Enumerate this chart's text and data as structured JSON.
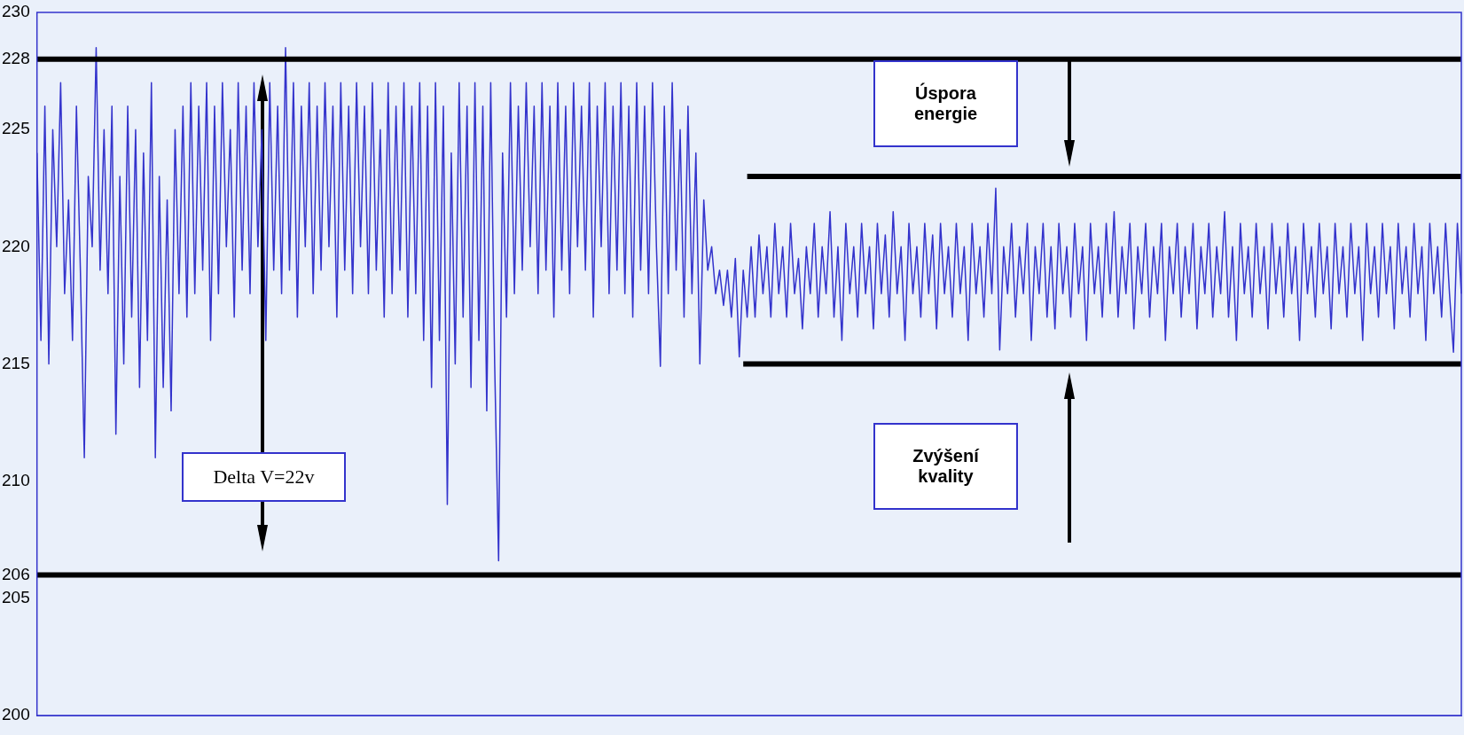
{
  "chart_data": {
    "type": "line",
    "categories": [
      null,
      null,
      null,
      null,
      null,
      null,
      null,
      null,
      null,
      null,
      null,
      null,
      null,
      null,
      null,
      null,
      null,
      null,
      null,
      null,
      null,
      null,
      null,
      null,
      null,
      null,
      null,
      null,
      null,
      null,
      null,
      null,
      null,
      null,
      null,
      null,
      null,
      null,
      null,
      null,
      null,
      null,
      null,
      null,
      null,
      null,
      null,
      null,
      null,
      null,
      null,
      null,
      null,
      null,
      null,
      null,
      null,
      null,
      null,
      null,
      null,
      null,
      null,
      null,
      null,
      null,
      null,
      null,
      null,
      null,
      null,
      null,
      null,
      null,
      null,
      null,
      null,
      null,
      null,
      null,
      null,
      null,
      null,
      null,
      null,
      null,
      null,
      null,
      null,
      null,
      null,
      null,
      null,
      null,
      null,
      null,
      null,
      null,
      null,
      null,
      null,
      null,
      null,
      null,
      null,
      null,
      null,
      null,
      null,
      null,
      null,
      null,
      null,
      null,
      null,
      null,
      null,
      null,
      null,
      null,
      null,
      null,
      null,
      null,
      null,
      null,
      null,
      null,
      null,
      null,
      null,
      null,
      null,
      null,
      null,
      null,
      null,
      null,
      null,
      null,
      null,
      null,
      null,
      null,
      null,
      null,
      null,
      null,
      null,
      null,
      null,
      null,
      null,
      null,
      null,
      null,
      null,
      null,
      null,
      null,
      null,
      null,
      null,
      null,
      null,
      null,
      null,
      null,
      null,
      null,
      null,
      null,
      null,
      null,
      null,
      null,
      null,
      null,
      null,
      null,
      null,
      null,
      null,
      null,
      null,
      null,
      null,
      null,
      null,
      null,
      null,
      null,
      null,
      null,
      null,
      null,
      null,
      null,
      null,
      null,
      null,
      null,
      null,
      null,
      null,
      null,
      null,
      null,
      null,
      null,
      null,
      null,
      null,
      null,
      null,
      null,
      null,
      null,
      null,
      null,
      null,
      null,
      null,
      null,
      null,
      null,
      null,
      null,
      null,
      null,
      null,
      null,
      null,
      null,
      null,
      null,
      null,
      null,
      null,
      null,
      null,
      null,
      null,
      null,
      null,
      null,
      null,
      null,
      null,
      null,
      null,
      null,
      null,
      null,
      null,
      null,
      null,
      null,
      null,
      null,
      null,
      null,
      null,
      null,
      null,
      null,
      null,
      null,
      null,
      null,
      null,
      null,
      null,
      null,
      null,
      null,
      null,
      null,
      null,
      null,
      null,
      null,
      null,
      null,
      null,
      null,
      null,
      null,
      null,
      null,
      null,
      null,
      null,
      null,
      null,
      null,
      null,
      null,
      null,
      null,
      null,
      null,
      null,
      null,
      null,
      null,
      null,
      null,
      null,
      null,
      null,
      null,
      null,
      null,
      null,
      null,
      null,
      null,
      null,
      null,
      null,
      null,
      null,
      null,
      null,
      null,
      null,
      null,
      null,
      null,
      null,
      null,
      null,
      null,
      null,
      null,
      null,
      null,
      null,
      null,
      null,
      null,
      null,
      null,
      null,
      null,
      null,
      null,
      null,
      null,
      null,
      null,
      null,
      null,
      null,
      null,
      null,
      null,
      null,
      null,
      null,
      null
    ],
    "ylim": [
      200,
      230
    ],
    "yticks": [
      200,
      205,
      206,
      210,
      215,
      220,
      225,
      228,
      230
    ],
    "tick_labels": "y",
    "grid": false,
    "legend": false,
    "marker": "none",
    "line_style": "solid",
    "series": [
      {
        "color": "#3333cc",
        "values": [
          224,
          216,
          226,
          215,
          225,
          220,
          227,
          218,
          222,
          216,
          226,
          219,
          211,
          223,
          220,
          228.5,
          219,
          225,
          218,
          226,
          212,
          223,
          215,
          226,
          217,
          225,
          214,
          224,
          216,
          227,
          211,
          223,
          214,
          222,
          213,
          225,
          218,
          226,
          217,
          227,
          218,
          226,
          219,
          227,
          216,
          226,
          218,
          227,
          220,
          225,
          217,
          227,
          219,
          226,
          218,
          227,
          220,
          225,
          216,
          227,
          219,
          226,
          218,
          228.5,
          219,
          227,
          217,
          226,
          220,
          227,
          218,
          226,
          219,
          227,
          220,
          226,
          217,
          227,
          219,
          226,
          218,
          227,
          220,
          226,
          218,
          227,
          219,
          225,
          217,
          227,
          218,
          226,
          219,
          227,
          217,
          226,
          218,
          227,
          216,
          226,
          214,
          227,
          216,
          226,
          209,
          224,
          215,
          227,
          217,
          226,
          214,
          227,
          216,
          226,
          213,
          227,
          215,
          206.6,
          224,
          217,
          227,
          218,
          226,
          219,
          227,
          220,
          226,
          218,
          227,
          219,
          226,
          217,
          227,
          219,
          226,
          218,
          227,
          220,
          226,
          219,
          227,
          217,
          226,
          220,
          227,
          218,
          226,
          219,
          227,
          218,
          226,
          217,
          227,
          219,
          226,
          218,
          227,
          220,
          214.9,
          226,
          218,
          227,
          219,
          225,
          217,
          226,
          218,
          224,
          215,
          222,
          219,
          220,
          218,
          219,
          217.5,
          219,
          217,
          219.5,
          215.3,
          219,
          217,
          220,
          217,
          220.5,
          218,
          220,
          217,
          221,
          218,
          220,
          217,
          221,
          218,
          219.5,
          216.5,
          220,
          218,
          221,
          217,
          220,
          218,
          221.5,
          217,
          220,
          216,
          221,
          218,
          220,
          217,
          221,
          218,
          220,
          216.5,
          221,
          218,
          220.5,
          217,
          221.5,
          218,
          220,
          216,
          221,
          218,
          220,
          217,
          221,
          218,
          220.5,
          216.5,
          221,
          218,
          220,
          217,
          221,
          218,
          220,
          216,
          221,
          218,
          220,
          217,
          221,
          218,
          222.5,
          215.6,
          220,
          218,
          221,
          217,
          220,
          218,
          221,
          216,
          220,
          218,
          221,
          217,
          220,
          216.5,
          221,
          218,
          220,
          217,
          221,
          218,
          220,
          216,
          221,
          218,
          220,
          217,
          221,
          218,
          221.5,
          217,
          220,
          218,
          221,
          216.5,
          220,
          218,
          221,
          217,
          220,
          218,
          221,
          216,
          220,
          218,
          221,
          217,
          220,
          218,
          221,
          216.5,
          220,
          218,
          221,
          217,
          220,
          218,
          221.5,
          217,
          220,
          216,
          221,
          218,
          220,
          217,
          221,
          218,
          220,
          216.5,
          221,
          218,
          220,
          217,
          221,
          218,
          220,
          216,
          221,
          218,
          220,
          217,
          221,
          218,
          220,
          216.5,
          221,
          218,
          220,
          217,
          221,
          218,
          220,
          216,
          221,
          218,
          220,
          217,
          221,
          218,
          220,
          216.5,
          221,
          218,
          220,
          217,
          221,
          218,
          220,
          216,
          221,
          218,
          220,
          217,
          221,
          218,
          215.5,
          221,
          218
        ]
      },
      {
        "color": "#000000",
        "values": [
          null,
          null,
          null,
          null,
          null,
          null,
          null,
          null,
          null,
          null,
          null,
          null,
          null,
          null,
          null,
          null,
          null,
          null,
          null,
          null,
          null,
          null,
          null,
          null,
          null,
          null,
          null,
          null,
          null,
          null,
          null,
          null,
          null,
          null,
          null,
          null,
          null,
          null,
          null,
          null,
          null,
          null,
          null,
          null,
          null,
          null,
          null,
          null,
          null,
          null,
          null,
          null,
          null,
          null,
          null,
          null,
          null,
          null,
          null,
          null,
          null,
          null,
          null,
          null,
          null,
          null,
          null,
          null,
          null,
          null,
          null,
          null,
          null,
          null,
          null,
          null,
          null,
          null,
          null,
          null,
          null,
          null,
          null,
          null,
          null,
          null,
          null,
          null,
          null,
          null,
          null,
          null,
          null,
          null,
          null,
          null,
          null,
          null,
          null,
          null,
          null,
          null,
          null,
          null,
          null,
          null,
          null,
          null,
          null,
          null,
          null,
          null,
          null,
          null,
          null,
          null,
          null,
          null,
          null,
          null,
          null,
          null,
          null,
          null,
          null,
          null,
          null,
          null,
          null,
          null,
          null,
          null,
          null,
          null,
          null,
          null,
          null,
          null,
          null,
          null,
          null,
          null,
          null,
          null,
          null,
          null,
          null,
          null,
          null,
          null,
          null,
          null,
          null,
          null,
          null,
          null,
          null,
          null,
          null,
          null,
          null,
          null,
          null,
          null,
          null,
          null,
          null,
          null,
          null,
          null,
          null,
          null,
          null,
          null,
          null,
          null,
          null,
          null,
          null,
          null,
          223,
          223,
          223,
          223,
          223,
          223,
          223,
          223,
          223,
          223,
          223,
          223,
          223,
          223,
          223,
          223,
          223,
          223,
          223,
          223,
          223,
          223,
          223,
          223,
          223,
          223,
          223,
          223,
          223,
          223,
          223,
          223,
          223,
          223,
          223,
          223,
          223,
          223,
          223,
          223,
          223,
          223,
          223,
          223,
          223,
          223,
          223,
          223,
          223,
          223,
          223,
          223,
          223,
          223,
          223,
          223,
          223,
          223,
          223,
          223,
          223,
          223,
          223,
          223,
          223,
          223,
          223,
          223,
          223,
          223,
          223,
          223,
          223,
          223,
          223,
          223,
          223,
          223,
          223,
          223,
          223,
          223,
          223,
          223,
          223,
          223,
          223,
          223,
          223,
          223,
          223,
          223,
          223,
          223,
          223,
          223,
          223,
          223,
          223,
          223,
          223,
          223,
          223,
          223,
          223,
          223,
          223,
          223,
          223,
          223,
          223,
          223,
          223,
          223,
          223,
          223,
          223,
          223,
          223,
          223,
          223,
          223,
          223,
          223,
          223,
          223,
          223,
          223,
          223,
          223,
          223,
          223,
          223,
          223,
          223,
          223,
          223,
          223,
          223,
          223,
          223,
          223,
          223,
          223,
          223,
          223,
          223,
          223,
          223,
          223,
          223,
          223,
          223,
          223,
          223,
          223,
          223,
          223,
          223,
          223,
          223,
          223,
          223,
          223,
          223,
          223,
          223,
          223,
          223,
          223,
          223,
          223,
          223,
          223,
          223,
          223,
          223,
          223,
          223,
          223,
          223,
          223
        ]
      },
      {
        "color": "#000000",
        "values": [
          null,
          null,
          null,
          null,
          null,
          null,
          null,
          null,
          null,
          null,
          null,
          null,
          null,
          null,
          null,
          null,
          null,
          null,
          null,
          null,
          null,
          null,
          null,
          null,
          null,
          null,
          null,
          null,
          null,
          null,
          null,
          null,
          null,
          null,
          null,
          null,
          null,
          null,
          null,
          null,
          null,
          null,
          null,
          null,
          null,
          null,
          null,
          null,
          null,
          null,
          null,
          null,
          null,
          null,
          null,
          null,
          null,
          null,
          null,
          null,
          null,
          null,
          null,
          null,
          null,
          null,
          null,
          null,
          null,
          null,
          null,
          null,
          null,
          null,
          null,
          null,
          null,
          null,
          null,
          null,
          null,
          null,
          null,
          null,
          null,
          null,
          null,
          null,
          null,
          null,
          null,
          null,
          null,
          null,
          null,
          null,
          null,
          null,
          null,
          null,
          null,
          null,
          null,
          null,
          null,
          null,
          null,
          null,
          null,
          null,
          null,
          null,
          null,
          null,
          null,
          null,
          null,
          null,
          null,
          null,
          null,
          null,
          null,
          null,
          null,
          null,
          null,
          null,
          null,
          null,
          null,
          null,
          null,
          null,
          null,
          null,
          null,
          null,
          null,
          null,
          null,
          null,
          null,
          null,
          null,
          null,
          null,
          null,
          null,
          null,
          null,
          null,
          null,
          null,
          null,
          null,
          null,
          null,
          null,
          null,
          null,
          null,
          null,
          null,
          null,
          null,
          null,
          null,
          null,
          null,
          null,
          null,
          null,
          null,
          null,
          null,
          null,
          null,
          null,
          215,
          215,
          215,
          215,
          215,
          215,
          215,
          215,
          215,
          215,
          215,
          215,
          215,
          215,
          215,
          215,
          215,
          215,
          215,
          215,
          215,
          215,
          215,
          215,
          215,
          215,
          215,
          215,
          215,
          215,
          215,
          215,
          215,
          215,
          215,
          215,
          215,
          215,
          215,
          215,
          215,
          215,
          215,
          215,
          215,
          215,
          215,
          215,
          215,
          215,
          215,
          215,
          215,
          215,
          215,
          215,
          215,
          215,
          215,
          215,
          215,
          215,
          215,
          215,
          215,
          215,
          215,
          215,
          215,
          215,
          215,
          215,
          215,
          215,
          215,
          215,
          215,
          215,
          215,
          215,
          215,
          215,
          215,
          215,
          215,
          215,
          215,
          215,
          215,
          215,
          215,
          215,
          215,
          215,
          215,
          215,
          215,
          215,
          215,
          215,
          215,
          215,
          215,
          215,
          215,
          215,
          215,
          215,
          215,
          215,
          215,
          215,
          215,
          215,
          215,
          215,
          215,
          215,
          215,
          215,
          215,
          215,
          215,
          215,
          215,
          215,
          215,
          215,
          215,
          215,
          215,
          215,
          215,
          215,
          215,
          215,
          215,
          215,
          215,
          215,
          215,
          215,
          215,
          215,
          215,
          215,
          215,
          215,
          215,
          215,
          215,
          215,
          215,
          215,
          215,
          215,
          215,
          215,
          215,
          215,
          215,
          215,
          215,
          215,
          215,
          215,
          215,
          215,
          215,
          215,
          215,
          215,
          215,
          215,
          215,
          215,
          215,
          215,
          215,
          215,
          215,
          215,
          215
        ]
      }
    ],
    "ref_lines": [
      {
        "axis": "y",
        "value": 228,
        "color": "#000000"
      },
      {
        "axis": "y",
        "value": 206,
        "color": "#000000"
      }
    ],
    "annotations": [
      "Úspora energie",
      "Zvýšení kvality",
      "Delta V=22v"
    ]
  }
}
